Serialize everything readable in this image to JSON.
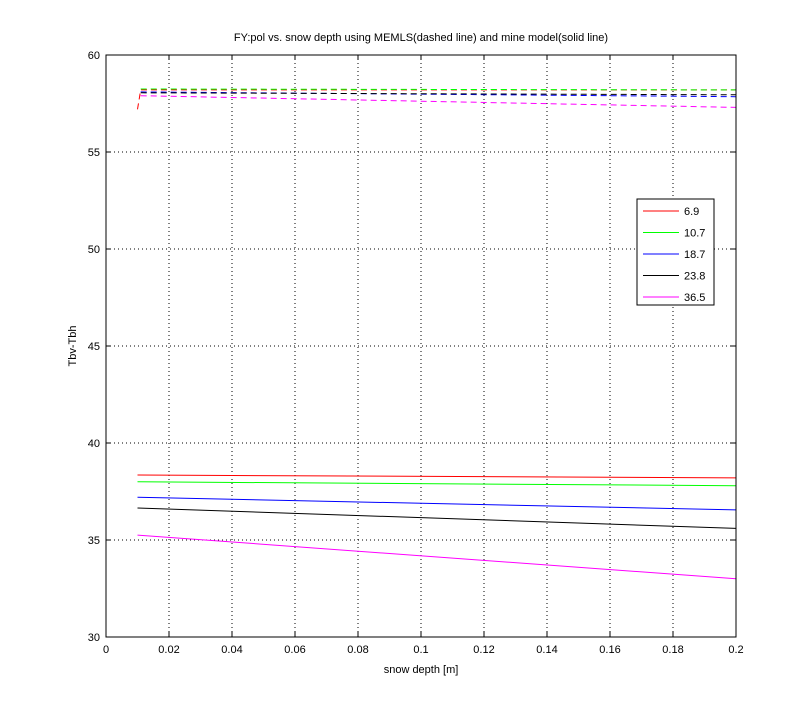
{
  "chart_data": {
    "type": "line",
    "title": "FY:pol vs. snow depth using MEMLS(dashed line) and mine model(solid line)",
    "xlabel": "snow depth [m]",
    "ylabel": "Tbv-Tbh",
    "xlim": [
      0,
      0.2
    ],
    "ylim": [
      30,
      60
    ],
    "xticks": [
      0,
      0.02,
      0.04,
      0.06,
      0.08,
      0.1,
      0.12,
      0.14,
      0.16,
      0.18,
      0.2
    ],
    "xtick_labels": [
      "0",
      "0.02",
      "0.04",
      "0.06",
      "0.08",
      "0.1",
      "0.12",
      "0.14",
      "0.16",
      "0.18",
      "0.2"
    ],
    "yticks": [
      30,
      35,
      40,
      45,
      50,
      55,
      60
    ],
    "ytick_labels": [
      "30",
      "35",
      "40",
      "45",
      "50",
      "55",
      "60"
    ],
    "grid": true,
    "legend_position": "right",
    "legend_entries": [
      "6.9",
      "10.7",
      "18.7",
      "23.8",
      "36.5"
    ],
    "series": [
      {
        "name": "6.9",
        "color": "#ff0000",
        "style": "solid",
        "x": [
          0.01,
          0.2
        ],
        "y": [
          38.35,
          38.2
        ]
      },
      {
        "name": "10.7",
        "color": "#00ff00",
        "style": "solid",
        "x": [
          0.01,
          0.2
        ],
        "y": [
          38.0,
          37.8
        ]
      },
      {
        "name": "18.7",
        "color": "#0000ff",
        "style": "solid",
        "x": [
          0.01,
          0.2
        ],
        "y": [
          37.2,
          36.55
        ]
      },
      {
        "name": "23.8",
        "color": "#000000",
        "style": "solid",
        "x": [
          0.01,
          0.2
        ],
        "y": [
          36.65,
          35.6
        ]
      },
      {
        "name": "36.5",
        "color": "#ff00ff",
        "style": "solid",
        "x": [
          0.01,
          0.2
        ],
        "y": [
          35.25,
          33.0
        ]
      },
      {
        "name": "6.9",
        "color": "#ff0000",
        "style": "dashed",
        "x": [
          0.01,
          0.011,
          0.2
        ],
        "y": [
          57.2,
          58.2,
          58.2
        ]
      },
      {
        "name": "10.7",
        "color": "#00ff00",
        "style": "dashed",
        "x": [
          0.011,
          0.2
        ],
        "y": [
          58.25,
          58.2
        ]
      },
      {
        "name": "18.7",
        "color": "#0000ff",
        "style": "dashed",
        "x": [
          0.011,
          0.2
        ],
        "y": [
          58.1,
          57.85
        ]
      },
      {
        "name": "23.8",
        "color": "#000000",
        "style": "dashed",
        "x": [
          0.011,
          0.2
        ],
        "y": [
          58.05,
          57.95
        ]
      },
      {
        "name": "36.5",
        "color": "#ff00ff",
        "style": "dashed",
        "x": [
          0.011,
          0.2
        ],
        "y": [
          57.9,
          57.3
        ]
      }
    ]
  }
}
